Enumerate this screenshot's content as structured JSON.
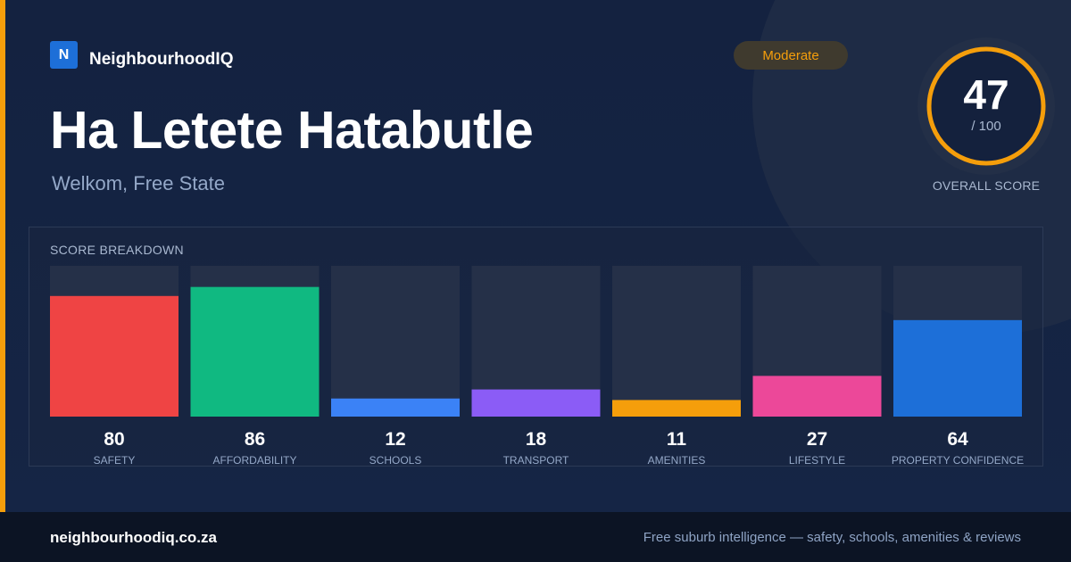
{
  "brand": {
    "logo_letter": "N",
    "name": "NeighbourhoodIQ"
  },
  "title": "Ha Letete Hatabutle",
  "subtitle": "Welkom, Free State",
  "badge": {
    "label": "Moderate",
    "color": "#f59e0b"
  },
  "overall": {
    "value": "47",
    "max_label": "/ 100",
    "caption": "OVERALL SCORE",
    "score": 47,
    "ring_color": "#f59e0b"
  },
  "breakdown": {
    "title": "SCORE BREAKDOWN"
  },
  "chart_data": {
    "type": "bar",
    "categories": [
      "SAFETY",
      "AFFORDABILITY",
      "SCHOOLS",
      "TRANSPORT",
      "AMENITIES",
      "LIFESTYLE",
      "PROPERTY CONFIDENCE"
    ],
    "values": [
      80,
      86,
      12,
      18,
      11,
      27,
      64
    ],
    "colors": [
      "#ef4444",
      "#10b981",
      "#3b82f6",
      "#8b5cf6",
      "#f59e0b",
      "#ec4899",
      "#1d6fd8"
    ],
    "ylim": [
      0,
      100
    ],
    "title": "SCORE BREAKDOWN"
  },
  "footer": {
    "site": "neighbourhoodiq.co.za",
    "tagline": "Free suburb intelligence — safety, schools, amenities & reviews"
  }
}
